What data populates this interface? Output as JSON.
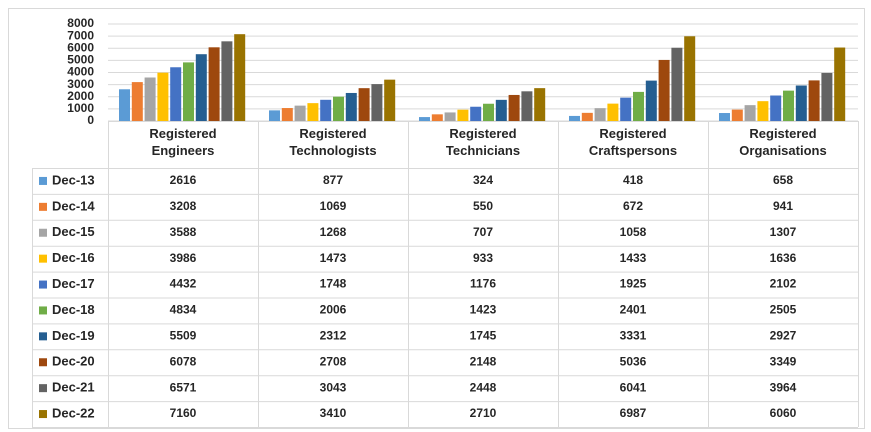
{
  "chart_data": {
    "type": "bar",
    "categories": [
      "Registered Engineers",
      "Registered Technologists",
      "Registered Technicians",
      "Registered Craftspersons",
      "Registered Organisations"
    ],
    "series": [
      {
        "name": "Dec-13",
        "color": "#5b9bd5",
        "values": [
          2616,
          877,
          324,
          418,
          658
        ]
      },
      {
        "name": "Dec-14",
        "color": "#ed7d31",
        "values": [
          3208,
          1069,
          550,
          672,
          941
        ]
      },
      {
        "name": "Dec-15",
        "color": "#a5a5a5",
        "values": [
          3588,
          1268,
          707,
          1058,
          1307
        ]
      },
      {
        "name": "Dec-16",
        "color": "#ffc000",
        "values": [
          3986,
          1473,
          933,
          1433,
          1636
        ]
      },
      {
        "name": "Dec-17",
        "color": "#4472c4",
        "values": [
          4432,
          1748,
          1176,
          1925,
          2102
        ]
      },
      {
        "name": "Dec-18",
        "color": "#70ad47",
        "values": [
          4834,
          2006,
          1423,
          2401,
          2505
        ]
      },
      {
        "name": "Dec-19",
        "color": "#255e91",
        "values": [
          5509,
          2312,
          1745,
          3331,
          2927
        ]
      },
      {
        "name": "Dec-20",
        "color": "#9e480e",
        "values": [
          6078,
          2708,
          2148,
          5036,
          3349
        ]
      },
      {
        "name": "Dec-21",
        "color": "#636363",
        "values": [
          6571,
          3043,
          2448,
          6041,
          3964
        ]
      },
      {
        "name": "Dec-22",
        "color": "#997300",
        "values": [
          7160,
          3410,
          2710,
          6987,
          6060
        ]
      }
    ],
    "ylim": [
      0,
      8000
    ],
    "yticks": [
      0,
      1000,
      2000,
      3000,
      4000,
      5000,
      6000,
      7000,
      8000
    ],
    "grid": true
  }
}
